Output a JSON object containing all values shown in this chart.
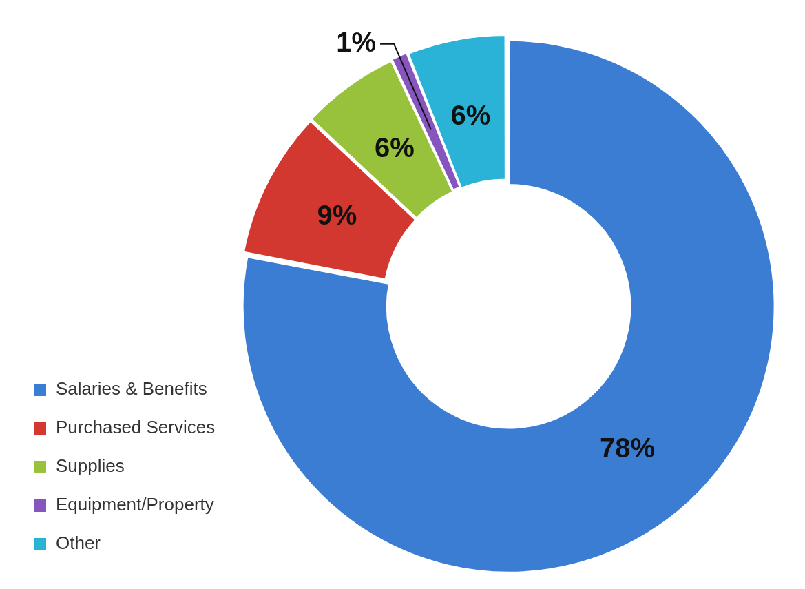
{
  "chart_data": {
    "type": "donut",
    "categories": [
      "Salaries & Benefits",
      "Purchased Services",
      "Supplies",
      "Equipment/Property",
      "Other"
    ],
    "values": [
      78,
      9,
      6,
      1,
      6
    ],
    "colors": [
      "#3b7dd3",
      "#d2382f",
      "#98c23c",
      "#8655bd",
      "#2ab3d6"
    ],
    "value_labels": [
      "78%",
      "9%",
      "6%",
      "1%",
      "6%"
    ],
    "legend": "bottom left"
  }
}
